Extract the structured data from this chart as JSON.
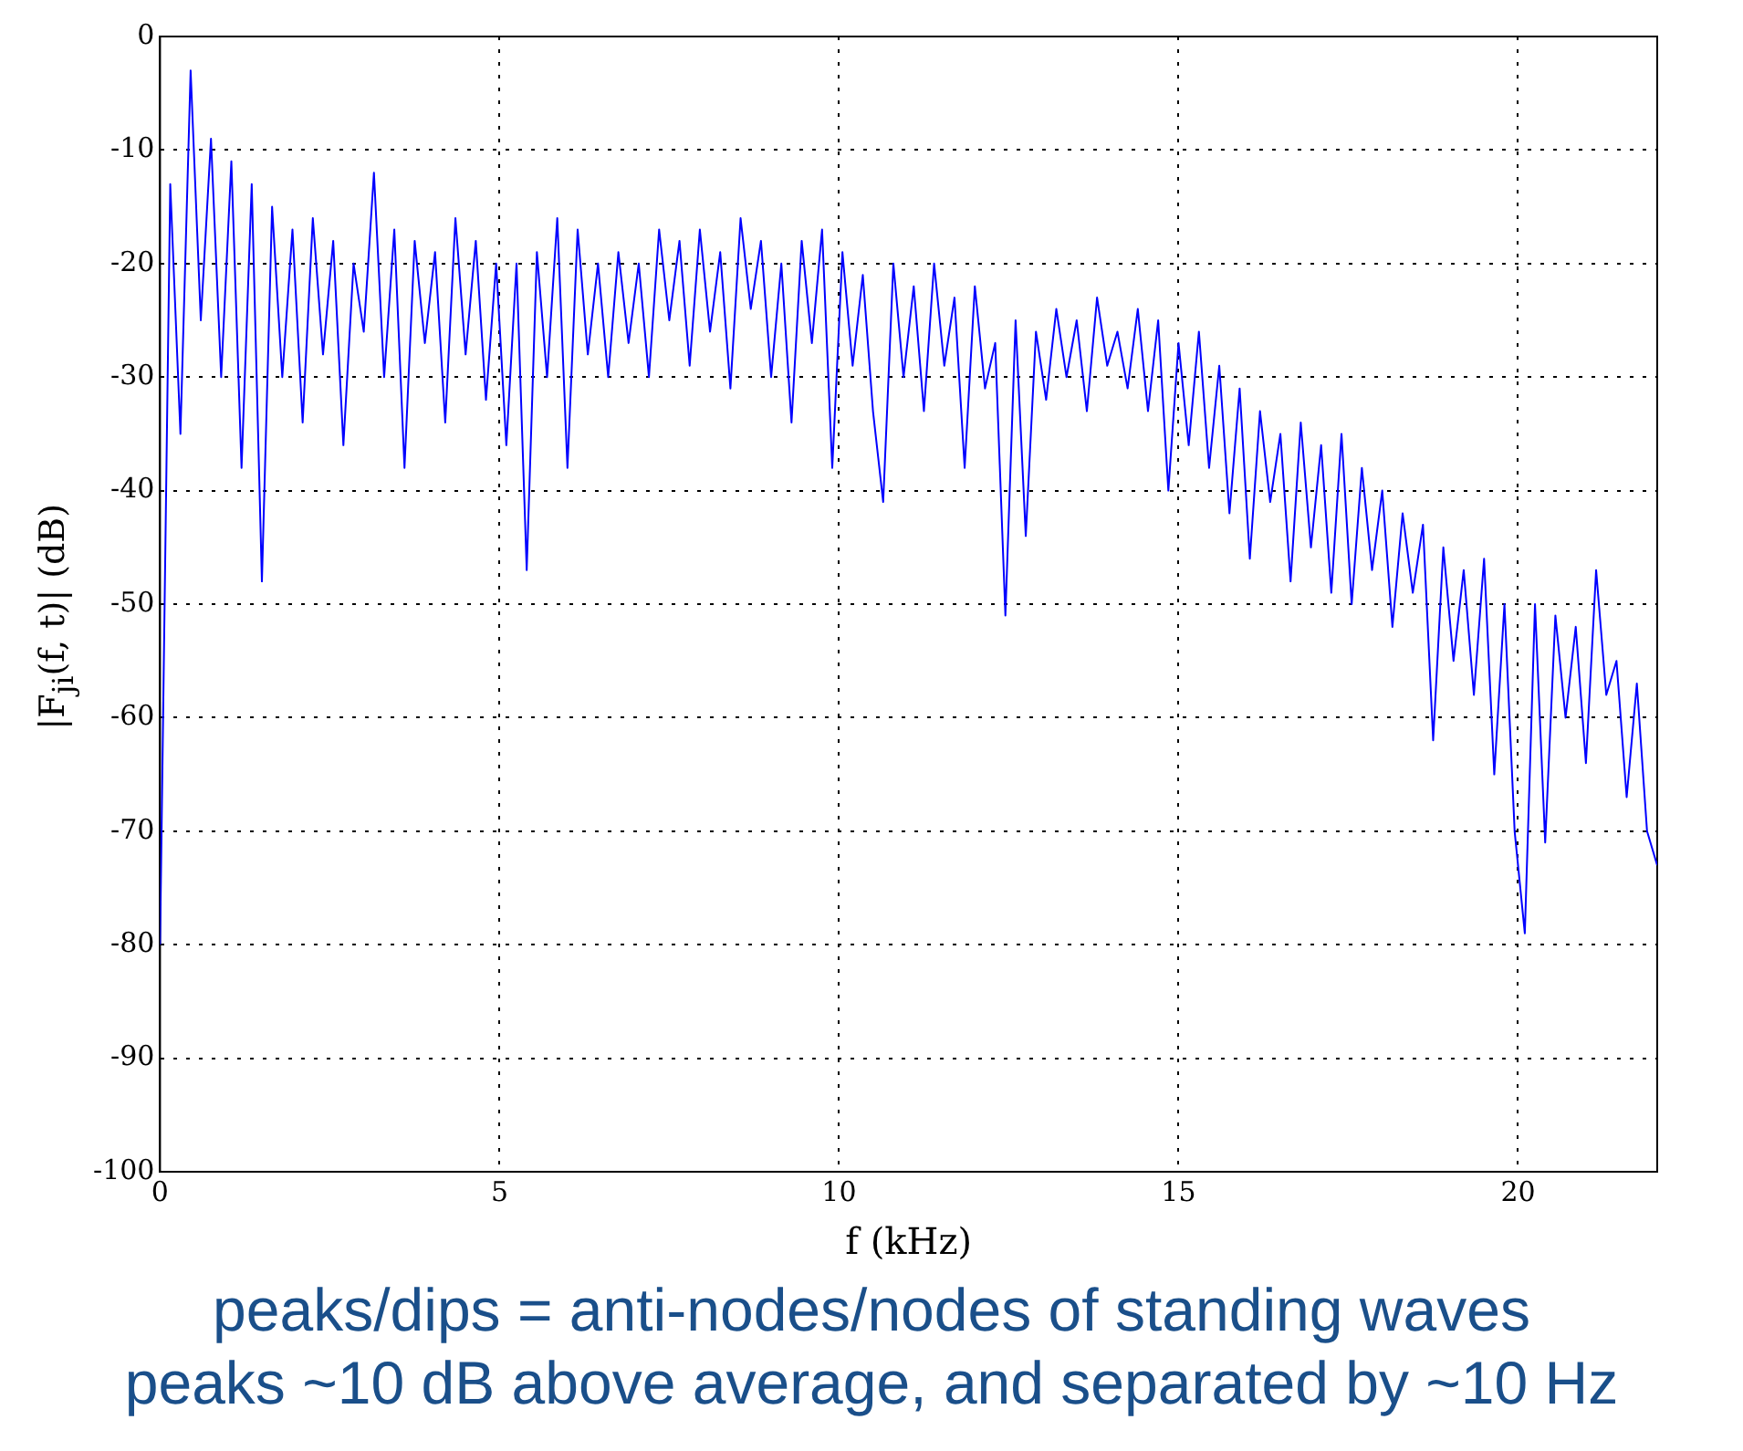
{
  "chart_data": {
    "type": "line",
    "xlabel": "f (kHz)",
    "ylabel": "|F$_{ji}$(f, t)| (dB)",
    "x": [
      0,
      0.15,
      0.3,
      0.45,
      0.6,
      0.75,
      0.9,
      1.05,
      1.2,
      1.35,
      1.5,
      1.65,
      1.8,
      1.95,
      2.1,
      2.25,
      2.4,
      2.55,
      2.7,
      2.85,
      3.0,
      3.15,
      3.3,
      3.45,
      3.6,
      3.75,
      3.9,
      4.05,
      4.2,
      4.35,
      4.5,
      4.65,
      4.8,
      4.95,
      5.1,
      5.25,
      5.4,
      5.55,
      5.7,
      5.85,
      6.0,
      6.15,
      6.3,
      6.45,
      6.6,
      6.75,
      6.9,
      7.05,
      7.2,
      7.35,
      7.5,
      7.65,
      7.8,
      7.95,
      8.1,
      8.25,
      8.4,
      8.55,
      8.7,
      8.85,
      9.0,
      9.15,
      9.3,
      9.45,
      9.6,
      9.75,
      9.9,
      10.05,
      10.2,
      10.35,
      10.5,
      10.65,
      10.8,
      10.95,
      11.1,
      11.25,
      11.4,
      11.55,
      11.7,
      11.85,
      12.0,
      12.15,
      12.3,
      12.45,
      12.6,
      12.75,
      12.9,
      13.05,
      13.2,
      13.35,
      13.5,
      13.65,
      13.8,
      13.95,
      14.1,
      14.25,
      14.4,
      14.55,
      14.7,
      14.85,
      15.0,
      15.15,
      15.3,
      15.45,
      15.6,
      15.75,
      15.9,
      16.05,
      16.2,
      16.35,
      16.5,
      16.65,
      16.8,
      16.95,
      17.1,
      17.25,
      17.4,
      17.55,
      17.7,
      17.85,
      18.0,
      18.15,
      18.3,
      18.45,
      18.6,
      18.75,
      18.9,
      19.05,
      19.2,
      19.35,
      19.5,
      19.65,
      19.8,
      19.95,
      20.1,
      20.25,
      20.4,
      20.55,
      20.7,
      20.85,
      21.0,
      21.15,
      21.3,
      21.45,
      21.6,
      21.75,
      21.9,
      22.05
    ],
    "series": [
      {
        "color": "#0000ff",
        "values": [
          -80,
          -13,
          -35,
          -3,
          -25,
          -9,
          -30,
          -11,
          -38,
          -13,
          -48,
          -15,
          -30,
          -17,
          -34,
          -16,
          -28,
          -18,
          -36,
          -20,
          -26,
          -12,
          -30,
          -17,
          -38,
          -18,
          -27,
          -19,
          -34,
          -16,
          -28,
          -18,
          -32,
          -20,
          -36,
          -20,
          -47,
          -19,
          -30,
          -16,
          -38,
          -17,
          -28,
          -20,
          -30,
          -19,
          -27,
          -20,
          -30,
          -17,
          -25,
          -18,
          -29,
          -17,
          -26,
          -19,
          -31,
          -16,
          -24,
          -18,
          -30,
          -20,
          -34,
          -18,
          -27,
          -17,
          -38,
          -19,
          -29,
          -21,
          -33,
          -41,
          -20,
          -30,
          -22,
          -33,
          -20,
          -29,
          -23,
          -38,
          -22,
          -31,
          -27,
          -51,
          -25,
          -44,
          -26,
          -32,
          -24,
          -30,
          -25,
          -33,
          -23,
          -29,
          -26,
          -31,
          -24,
          -33,
          -25,
          -40,
          -27,
          -36,
          -26,
          -38,
          -29,
          -42,
          -31,
          -46,
          -33,
          -41,
          -35,
          -48,
          -34,
          -45,
          -36,
          -49,
          -35,
          -50,
          -38,
          -47,
          -40,
          -52,
          -42,
          -49,
          -43,
          -62,
          -45,
          -55,
          -47,
          -58,
          -46,
          -65,
          -50,
          -70,
          -79,
          -50,
          -71,
          -51,
          -60,
          -52,
          -64,
          -47,
          -58,
          -55,
          -67,
          -57,
          -70,
          -73
        ]
      }
    ],
    "xlim": [
      0,
      22.05
    ],
    "xticks": [
      0,
      5,
      10,
      15,
      20
    ],
    "ylim": [
      -100,
      0
    ],
    "yticks": [
      -100,
      -90,
      -80,
      -70,
      -60,
      -50,
      -40,
      -30,
      -20,
      -10,
      0
    ],
    "grid": true,
    "legend": false,
    "marker": "none",
    "line_style": "solid",
    "annotations": [
      "peaks/dips = anti-nodes/nodes of standing waves",
      "peaks ~10 dB above average, and separated by ~10 Hz"
    ]
  }
}
